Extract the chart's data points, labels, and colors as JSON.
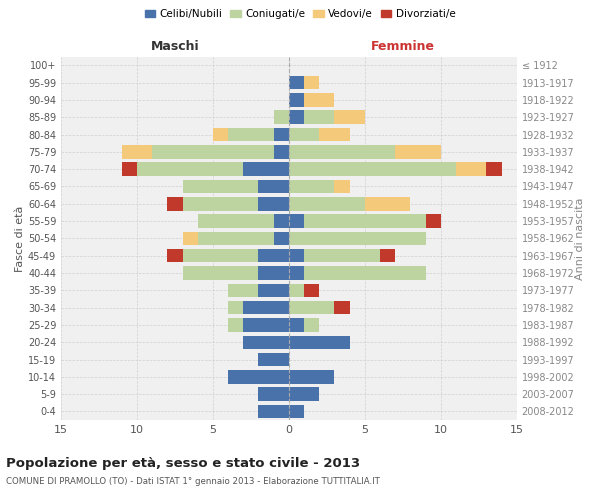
{
  "age_groups": [
    "0-4",
    "5-9",
    "10-14",
    "15-19",
    "20-24",
    "25-29",
    "30-34",
    "35-39",
    "40-44",
    "45-49",
    "50-54",
    "55-59",
    "60-64",
    "65-69",
    "70-74",
    "75-79",
    "80-84",
    "85-89",
    "90-94",
    "95-99",
    "100+"
  ],
  "year_labels": [
    "2008-2012",
    "2003-2007",
    "1998-2002",
    "1993-1997",
    "1988-1992",
    "1983-1987",
    "1978-1982",
    "1973-1977",
    "1968-1972",
    "1963-1967",
    "1958-1962",
    "1953-1957",
    "1948-1952",
    "1943-1947",
    "1938-1942",
    "1933-1937",
    "1928-1932",
    "1923-1927",
    "1918-1922",
    "1913-1917",
    "≤ 1912"
  ],
  "male": {
    "celibe": [
      2,
      2,
      4,
      2,
      3,
      3,
      3,
      2,
      2,
      2,
      1,
      1,
      2,
      2,
      3,
      1,
      1,
      0,
      0,
      0,
      0
    ],
    "coniugato": [
      0,
      0,
      0,
      0,
      0,
      1,
      1,
      2,
      5,
      5,
      5,
      5,
      5,
      5,
      7,
      8,
      3,
      1,
      0,
      0,
      0
    ],
    "vedovo": [
      0,
      0,
      0,
      0,
      0,
      0,
      0,
      0,
      0,
      0,
      1,
      0,
      0,
      0,
      0,
      2,
      1,
      0,
      0,
      0,
      0
    ],
    "divorziato": [
      0,
      0,
      0,
      0,
      0,
      0,
      0,
      0,
      0,
      1,
      0,
      0,
      1,
      0,
      1,
      0,
      0,
      0,
      0,
      0,
      0
    ]
  },
  "female": {
    "nubile": [
      1,
      2,
      3,
      0,
      4,
      1,
      0,
      0,
      1,
      1,
      0,
      1,
      0,
      0,
      0,
      0,
      0,
      1,
      1,
      1,
      0
    ],
    "coniugata": [
      0,
      0,
      0,
      0,
      0,
      1,
      3,
      1,
      8,
      5,
      9,
      8,
      5,
      3,
      11,
      7,
      2,
      2,
      0,
      0,
      0
    ],
    "vedova": [
      0,
      0,
      0,
      0,
      0,
      0,
      0,
      0,
      0,
      0,
      0,
      0,
      3,
      1,
      2,
      3,
      2,
      2,
      2,
      1,
      0
    ],
    "divorziata": [
      0,
      0,
      0,
      0,
      0,
      0,
      1,
      1,
      0,
      1,
      0,
      1,
      0,
      0,
      1,
      0,
      0,
      0,
      0,
      0,
      0
    ]
  },
  "colors": {
    "celibe": "#4a72aa",
    "coniugato": "#bdd4a0",
    "vedovo": "#f5c97a",
    "divorziato": "#c0392b"
  },
  "xlim": 15,
  "title": "Popolazione per età, sesso e stato civile - 2013",
  "subtitle": "COMUNE DI PRAMOLLO (TO) - Dati ISTAT 1° gennaio 2013 - Elaborazione TUTTITALIA.IT",
  "xlabel_left": "Maschi",
  "xlabel_right": "Femmine",
  "ylabel": "Fasce di età",
  "ylabel_right": "Anni di nascita",
  "legend_labels": [
    "Celibi/Nubili",
    "Coniugati/e",
    "Vedovi/e",
    "Divorziati/e"
  ],
  "bg_color": "#ffffff",
  "plot_bg": "#f0f0f0",
  "grid_color": "#cccccc"
}
